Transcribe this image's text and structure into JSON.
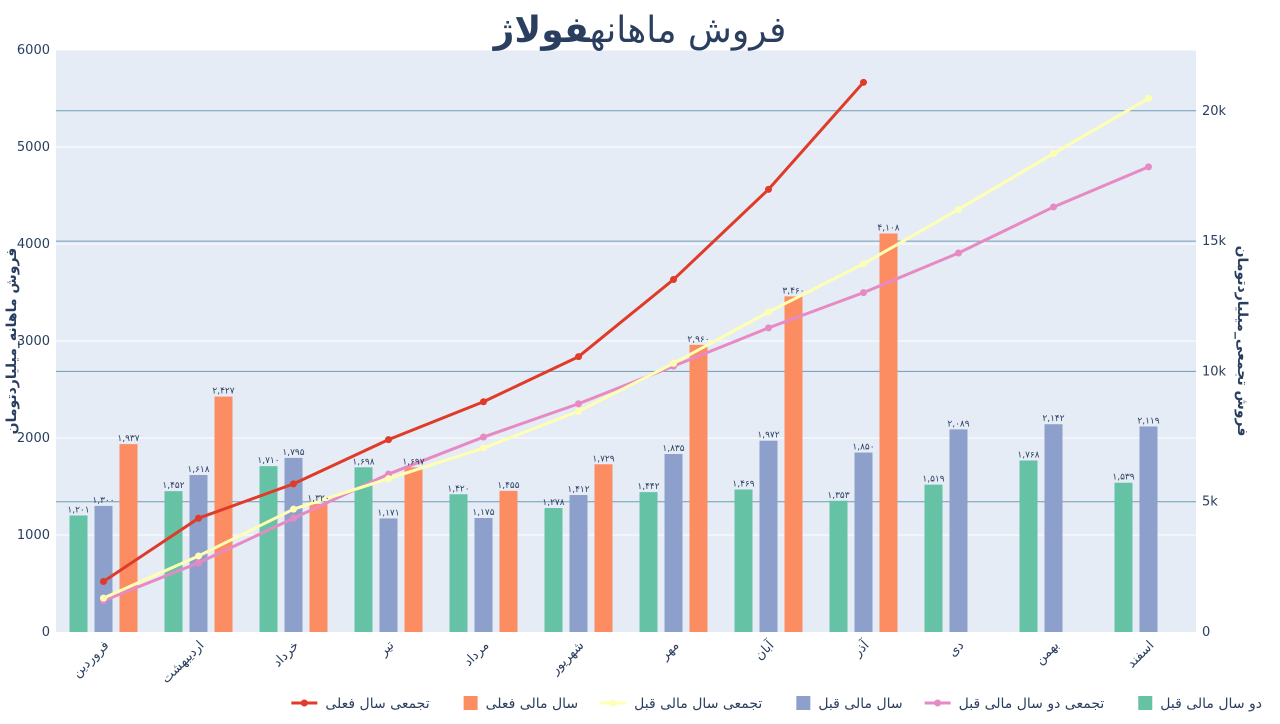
{
  "chart_data": {
    "type": "bar",
    "title": "فروش ماهانه",
    "title_bold": "فولاژ",
    "ylabel": "فروش ماهانه_میلیاردتومان",
    "y2label": "فروش تجمعی_میلیاردتومان",
    "ylim": [
      0,
      6000
    ],
    "y2lim": [
      0,
      22333
    ],
    "yticks": [
      "0",
      "1000",
      "2000",
      "3000",
      "4000",
      "5000",
      "6000"
    ],
    "y2ticks": [
      "0",
      "5k",
      "10k",
      "15k",
      "20k"
    ],
    "categories": [
      "فروردین",
      "اردیبهشت",
      "خرداد",
      "تیر",
      "مرداد",
      "شهریور",
      "مهر",
      "آبان",
      "آذر",
      "دی",
      "بهمن",
      "اسفند"
    ],
    "series": [
      {
        "name": "دو سال مالی قبل",
        "kind": "bar",
        "axis": "y",
        "color": "#66c2a5",
        "values": [
          1201,
          1452,
          1710,
          1698,
          1420,
          1278,
          1442,
          1469,
          1353,
          1519,
          1768,
          1539
        ],
        "labels": [
          "۱,۲۰۱",
          "۱,۴۵۲",
          "۱,۷۱۰",
          "۱,۶۹۸",
          "۱,۴۲۰",
          "۱,۲۷۸",
          "۱,۴۴۲",
          "۱,۴۶۹",
          "۱,۳۵۳",
          "۱,۵۱۹",
          "۱,۷۶۸",
          "۱,۵۳۹"
        ]
      },
      {
        "name": "سال مالی قبل",
        "kind": "bar",
        "axis": "y",
        "color": "#8da0cb",
        "values": [
          1300,
          1618,
          1795,
          1171,
          1175,
          1412,
          1835,
          1972,
          1850,
          2089,
          2142,
          2119
        ],
        "labels": [
          "۱,۳۰۰",
          "۱,۶۱۸",
          "۱,۷۹۵",
          "۱,۱۷۱",
          "۱,۱۷۵",
          "۱,۴۱۲",
          "۱,۸۳۵",
          "۱,۹۷۲",
          "۱,۸۵۰",
          "۲,۰۸۹",
          "۲,۱۴۲",
          "۲,۱۱۹"
        ]
      },
      {
        "name": "سال مالی فعلی",
        "kind": "bar",
        "axis": "y",
        "color": "#fc8d62",
        "values": [
          1937,
          2427,
          1320,
          1697,
          1455,
          1729,
          2960,
          3460,
          4108,
          null,
          null,
          null
        ],
        "labels": [
          "۱,۹۳۷",
          "۲,۴۲۷",
          "۱,۳۲۰",
          "۱,۶۹۷",
          "۱,۴۵۵",
          "۱,۷۲۹",
          "۲,۹۶۰",
          "۳,۴۶۰",
          "۴,۱۰۸",
          "",
          "",
          ""
        ]
      },
      {
        "name": "تجمعی دو سال مالی قبل",
        "kind": "line",
        "axis": "y2",
        "color": "#e78ac3",
        "values": [
          1201,
          2653,
          4363,
          6061,
          7481,
          8759,
          10201,
          11670,
          13023,
          14542,
          16310,
          17849
        ]
      },
      {
        "name": "تجمعی سال مالی قبل",
        "kind": "line",
        "axis": "y2",
        "color": "#ffffb3",
        "values": [
          1300,
          2918,
          4713,
          5884,
          7059,
          8471,
          10306,
          12278,
          14128,
          16217,
          18359,
          20478
        ]
      },
      {
        "name": "تجمعی سال فعلی",
        "kind": "line",
        "axis": "y2",
        "color": "#e03a28",
        "values": [
          1937,
          4364,
          5684,
          7381,
          8836,
          10565,
          13525,
          16985,
          21093,
          null,
          null,
          null
        ]
      }
    ],
    "legend": {
      "placement": "bottom-right",
      "order": [
        0,
        3,
        1,
        4,
        2,
        5
      ]
    },
    "grid": true
  }
}
